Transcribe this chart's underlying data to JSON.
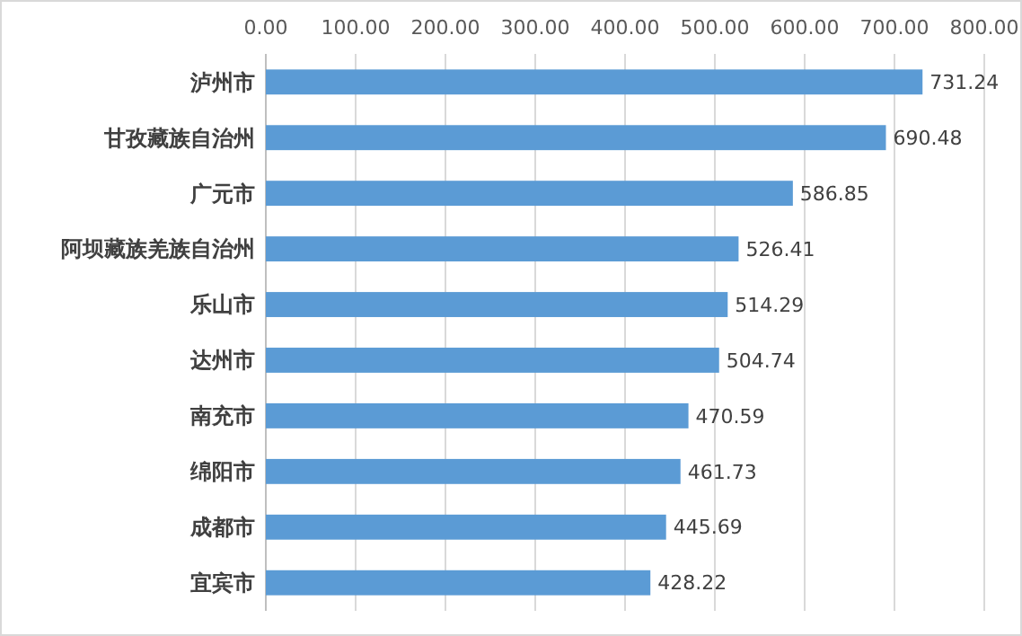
{
  "chart_data": {
    "type": "bar",
    "orientation": "horizontal",
    "categories": [
      "泸州市",
      "甘孜藏族自治州",
      "广元市",
      "阿坝藏族羌族自治州",
      "乐山市",
      "达州市",
      "南充市",
      "绵阳市",
      "成都市",
      "宜宾市"
    ],
    "values": [
      731.24,
      690.48,
      586.85,
      526.41,
      514.29,
      504.74,
      470.59,
      461.73,
      445.69,
      428.22
    ],
    "color": "#5b9bd5",
    "xlim": [
      0,
      800
    ],
    "xticks": [
      {
        "value": 0,
        "label": "0.00"
      },
      {
        "value": 100,
        "label": "100.00"
      },
      {
        "value": 200,
        "label": "200.00"
      },
      {
        "value": 300,
        "label": "300.00"
      },
      {
        "value": 400,
        "label": "400.00"
      },
      {
        "value": 500,
        "label": "500.00"
      },
      {
        "value": 600,
        "label": "600.00"
      },
      {
        "value": 700,
        "label": "700.00"
      },
      {
        "value": 800,
        "label": "800.00"
      }
    ],
    "grid": "x",
    "data_labels": true
  }
}
